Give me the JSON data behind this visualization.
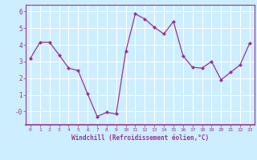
{
  "x": [
    0,
    1,
    2,
    3,
    4,
    5,
    6,
    7,
    8,
    9,
    10,
    11,
    12,
    13,
    14,
    15,
    16,
    17,
    18,
    19,
    20,
    21,
    22,
    23
  ],
  "y": [
    3.2,
    4.15,
    4.15,
    3.4,
    2.6,
    2.45,
    1.05,
    -0.3,
    -0.05,
    -0.15,
    3.6,
    5.85,
    5.55,
    5.05,
    4.65,
    5.4,
    3.35,
    2.65,
    2.6,
    3.0,
    1.9,
    2.35,
    2.8,
    4.1
  ],
  "line_color": "#993399",
  "marker": "D",
  "marker_size": 2,
  "linewidth": 0.9,
  "bg_color": "#cceeff",
  "grid_color": "#ffffff",
  "xlabel": "Windchill (Refroidissement éolien,°C)",
  "xlabel_color": "#993399",
  "tick_color": "#993399",
  "ylim": [
    -0.8,
    6.4
  ],
  "xlim": [
    -0.5,
    23.5
  ],
  "yticks": [
    0,
    1,
    2,
    3,
    4,
    5,
    6
  ],
  "ytick_labels": [
    "-0",
    "1",
    "2",
    "3",
    "4",
    "5",
    "6"
  ],
  "xticks": [
    0,
    1,
    2,
    3,
    4,
    5,
    6,
    7,
    8,
    9,
    10,
    11,
    12,
    13,
    14,
    15,
    16,
    17,
    18,
    19,
    20,
    21,
    22,
    23
  ]
}
